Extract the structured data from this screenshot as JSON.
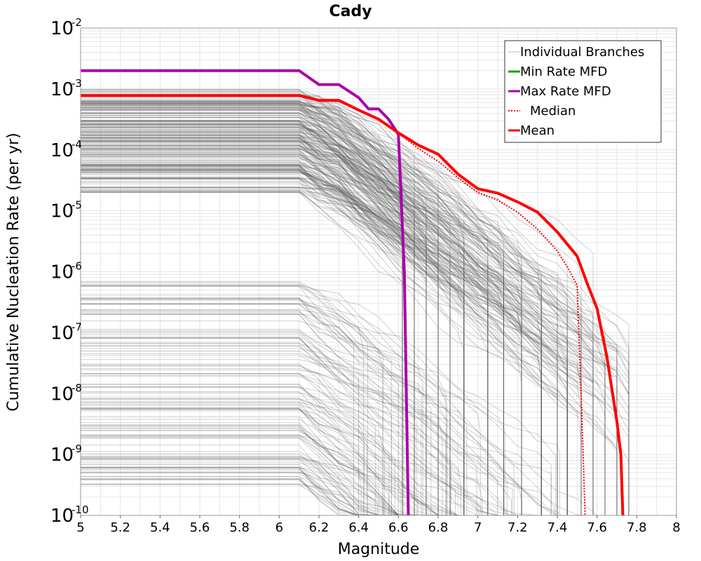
{
  "chart_data": {
    "type": "line",
    "title": "Cady",
    "xlabel": "Magnitude",
    "ylabel": "Cumulative Nucleation Rate (per yr)",
    "xlim": [
      5,
      8
    ],
    "ylim": [
      1e-10,
      0.01
    ],
    "y_scale": "log",
    "grid": true,
    "legend_position": "top-right",
    "x_ticks": [
      "5",
      "5.2",
      "5.4",
      "5.6",
      "5.8",
      "6",
      "6.2",
      "6.4",
      "6.6",
      "6.8",
      "7",
      "7.2",
      "7.4",
      "7.6",
      "7.8",
      "8"
    ],
    "y_ticks": [
      {
        "base": "10",
        "exp": "-10",
        "value": 1e-10
      },
      {
        "base": "10",
        "exp": "-9",
        "value": 1e-09
      },
      {
        "base": "10",
        "exp": "-8",
        "value": 1e-08
      },
      {
        "base": "10",
        "exp": "-7",
        "value": 1e-07
      },
      {
        "base": "10",
        "exp": "-6",
        "value": 1e-06
      },
      {
        "base": "10",
        "exp": "-5",
        "value": 1e-05
      },
      {
        "base": "10",
        "exp": "-4",
        "value": 0.0001
      },
      {
        "base": "10",
        "exp": "-3",
        "value": 0.001
      },
      {
        "base": "10",
        "exp": "-2",
        "value": 0.01
      }
    ],
    "series": [
      {
        "name": "Max Rate MFD",
        "color": "#aa00aa",
        "style": "solid",
        "x": [
          5.0,
          6.1,
          6.2,
          6.3,
          6.4,
          6.45,
          6.5,
          6.55,
          6.6,
          6.63,
          6.65
        ],
        "y": [
          0.002,
          0.002,
          0.00118,
          0.00118,
          0.00072,
          0.00047,
          0.00047,
          0.00032,
          0.00018,
          1e-06,
          1e-10
        ]
      },
      {
        "name": "Min Rate MFD",
        "color": "#00aa00",
        "style": "solid",
        "x": [],
        "y": []
      },
      {
        "name": "Median",
        "color": "#ff0000",
        "style": "dotted",
        "x": [
          5.0,
          6.1,
          6.2,
          6.3,
          6.4,
          6.5,
          6.6,
          6.7,
          6.8,
          6.9,
          7.0,
          7.1,
          7.2,
          7.3,
          7.4,
          7.45,
          7.5,
          7.52,
          7.54
        ],
        "y": [
          0.00078,
          0.00078,
          0.00065,
          0.00062,
          0.00045,
          0.00032,
          0.00019,
          0.000105,
          6.5e-05,
          3.5e-05,
          2e-05,
          1.5e-05,
          9.5e-06,
          5e-06,
          2.2e-06,
          1.2e-06,
          6e-07,
          1e-08,
          1e-10
        ]
      },
      {
        "name": "Mean",
        "color": "#ff0000",
        "style": "solid",
        "x": [
          5.0,
          6.1,
          6.2,
          6.3,
          6.4,
          6.5,
          6.6,
          6.7,
          6.8,
          6.9,
          7.0,
          7.1,
          7.2,
          7.3,
          7.4,
          7.5,
          7.55,
          7.6,
          7.65,
          7.7,
          7.72,
          7.73
        ],
        "y": [
          0.00078,
          0.00078,
          0.00065,
          0.00065,
          0.00045,
          0.00032,
          0.00019,
          0.00012,
          8.5e-05,
          4e-05,
          2.3e-05,
          1.95e-05,
          1.4e-05,
          9.5e-06,
          4.5e-06,
          1.8e-06,
          6.5e-07,
          2.5e-07,
          4e-08,
          3.5e-09,
          1e-09,
          1e-10
        ]
      }
    ],
    "legend": [
      {
        "label": "Individual Branches",
        "color": "#bbbbbb",
        "style": "solid"
      },
      {
        "label": "Min Rate MFD",
        "color": "#00aa00",
        "style": "solid"
      },
      {
        "label": "Max Rate MFD",
        "color": "#aa00aa",
        "style": "solid"
      },
      {
        "label": "Median",
        "color": "#ff0000",
        "style": "dotted"
      },
      {
        "label": "Mean",
        "color": "#ff0000",
        "style": "solid"
      }
    ],
    "branches_color": "#555555",
    "grid_color": "#e6e6e6"
  }
}
